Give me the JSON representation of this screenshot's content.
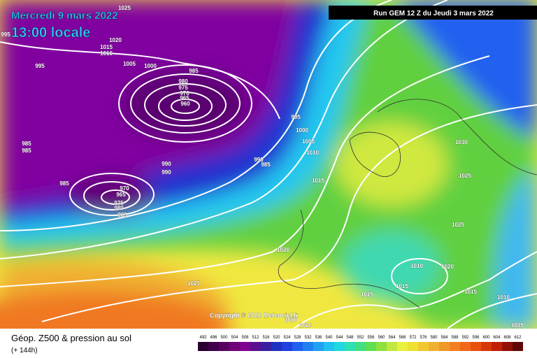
{
  "header": {
    "date": "Mercredi 9 mars 2022",
    "time": "13:00 locale",
    "run": "Run GEM 12 Z du Jeudi 3 mars 2022"
  },
  "copyright": "Copyright © 2022 Meteociel.fr",
  "footer": {
    "title": "Géop. Z500 & pression au sol",
    "lead": "(+ 144h)"
  },
  "scale": [
    492,
    496,
    500,
    504,
    508,
    512,
    516,
    520,
    524,
    528,
    532,
    536,
    540,
    544,
    548,
    552,
    556,
    560,
    564,
    568,
    572,
    576,
    580,
    584,
    588,
    592,
    596,
    600,
    604,
    608,
    612
  ],
  "isobars": [
    1025,
    995,
    1020,
    1015,
    1010,
    1005,
    1000,
    985,
    995,
    980,
    975,
    970,
    965,
    960,
    985,
    985,
    990,
    990,
    985,
    990,
    985,
    970,
    965,
    975,
    980,
    985,
    995,
    1000,
    1005,
    1010,
    1015,
    1030,
    1025,
    1025,
    1020,
    1010,
    1020,
    1015,
    1015,
    1015,
    1025,
    1010,
    1020,
    1020,
    1005
  ]
}
